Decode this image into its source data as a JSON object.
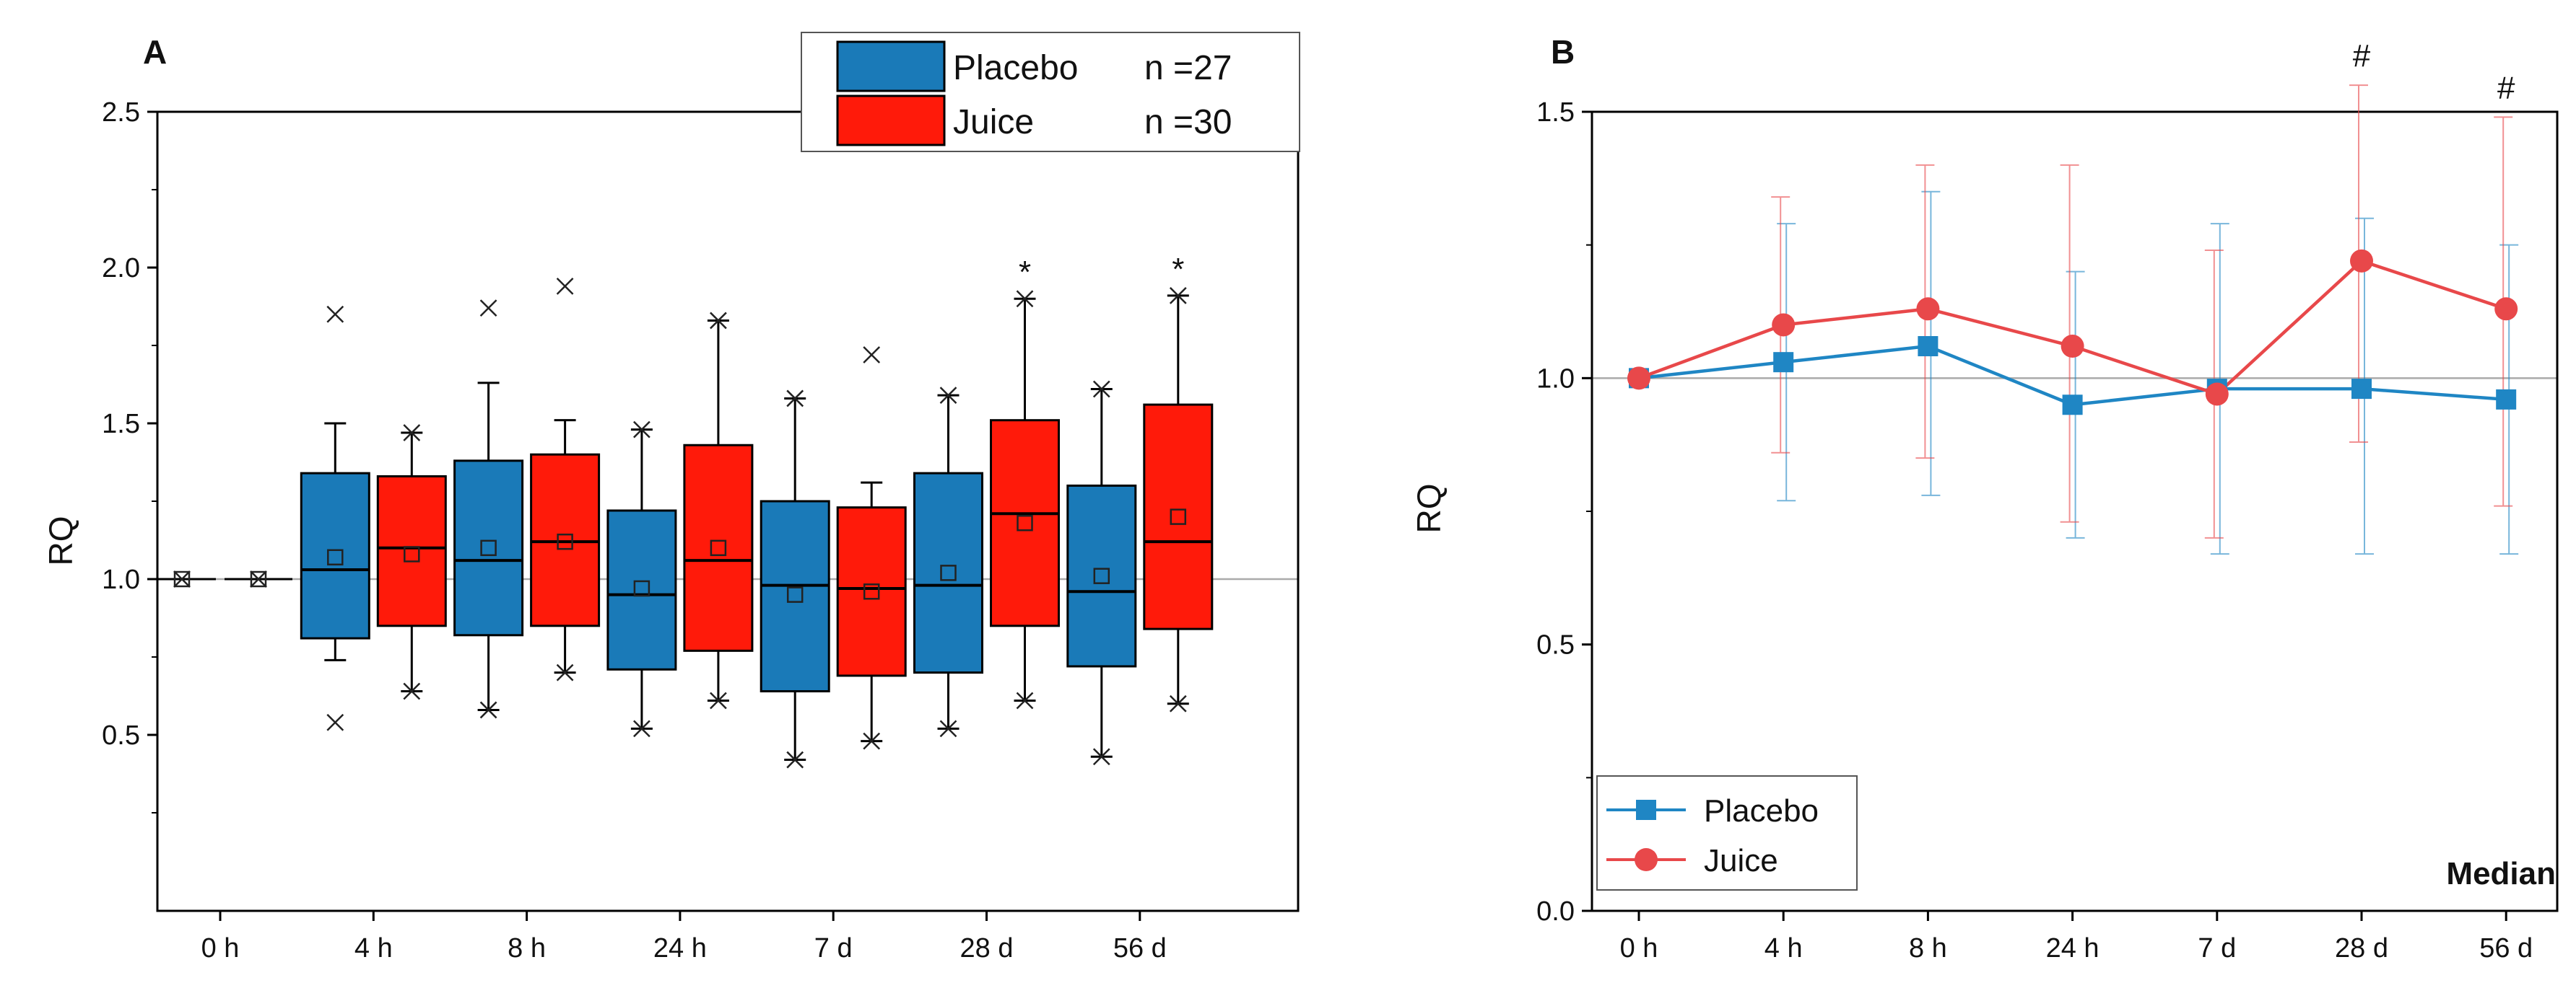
{
  "figure": {
    "panels": [
      "A",
      "B"
    ]
  },
  "chart_data": [
    {
      "panel": "A",
      "type": "box",
      "title": "",
      "xlabel": "",
      "ylabel": "RQ",
      "ylim": [
        0,
        2.5
      ],
      "yticks": [
        "0.5",
        "1.0",
        "1.5",
        "2.0",
        "2.5"
      ],
      "reference_line": 1.0,
      "categories": [
        "0 h",
        "4 h",
        "8 h",
        "24 h",
        "7 d",
        "28 d",
        "56 d"
      ],
      "legend": {
        "position": "top-right",
        "entries": [
          {
            "label": "Placebo",
            "n": "n =27",
            "color": "#1a7ab8"
          },
          {
            "label": "Juice",
            "n": "n =30",
            "color": "#ff1a0a"
          }
        ]
      },
      "series": [
        {
          "name": "Placebo",
          "color": "#1a7ab8",
          "boxes": [
            {
              "q1": 1.0,
              "median": 1.0,
              "q3": 1.0,
              "wlo": 1.0,
              "whi": 1.0,
              "mean": 1.0,
              "outliers": [
                1.0
              ]
            },
            {
              "q1": 0.81,
              "median": 1.03,
              "q3": 1.34,
              "wlo": 0.74,
              "whi": 1.5,
              "mean": 1.07,
              "outliers": [
                1.85,
                0.54
              ]
            },
            {
              "q1": 0.82,
              "median": 1.06,
              "q3": 1.38,
              "wlo": 0.58,
              "whi": 1.63,
              "mean": 1.1,
              "outliers": [
                1.87,
                0.58
              ]
            },
            {
              "q1": 0.71,
              "median": 0.95,
              "q3": 1.22,
              "wlo": 0.52,
              "whi": 1.48,
              "mean": 0.97,
              "outliers": [
                1.48,
                0.52
              ]
            },
            {
              "q1": 0.64,
              "median": 0.98,
              "q3": 1.25,
              "wlo": 0.42,
              "whi": 1.58,
              "mean": 0.95,
              "outliers": [
                1.58,
                0.42
              ]
            },
            {
              "q1": 0.7,
              "median": 0.98,
              "q3": 1.34,
              "wlo": 0.52,
              "whi": 1.59,
              "mean": 1.02,
              "outliers": [
                1.59,
                0.52
              ]
            },
            {
              "q1": 0.72,
              "median": 0.96,
              "q3": 1.3,
              "wlo": 0.43,
              "whi": 1.61,
              "mean": 1.01,
              "outliers": [
                1.61,
                0.43
              ]
            }
          ]
        },
        {
          "name": "Juice",
          "color": "#ff1a0a",
          "boxes": [
            {
              "q1": 1.0,
              "median": 1.0,
              "q3": 1.0,
              "wlo": 1.0,
              "whi": 1.0,
              "mean": 1.0,
              "outliers": [
                1.0
              ]
            },
            {
              "q1": 0.85,
              "median": 1.1,
              "q3": 1.33,
              "wlo": 0.64,
              "whi": 1.47,
              "mean": 1.08,
              "outliers": [
                1.47,
                0.64
              ]
            },
            {
              "q1": 0.85,
              "median": 1.12,
              "q3": 1.4,
              "wlo": 0.7,
              "whi": 1.51,
              "mean": 1.12,
              "outliers": [
                1.94,
                0.7
              ]
            },
            {
              "q1": 0.77,
              "median": 1.06,
              "q3": 1.43,
              "wlo": 0.61,
              "whi": 1.83,
              "mean": 1.1,
              "outliers": [
                1.83,
                0.61
              ]
            },
            {
              "q1": 0.69,
              "median": 0.97,
              "q3": 1.23,
              "wlo": 0.48,
              "whi": 1.31,
              "mean": 0.96,
              "outliers": [
                1.72,
                0.48
              ]
            },
            {
              "q1": 0.85,
              "median": 1.21,
              "q3": 1.51,
              "wlo": 0.61,
              "whi": 1.9,
              "mean": 1.18,
              "outliers": [
                1.9,
                0.61
              ]
            },
            {
              "q1": 0.84,
              "median": 1.12,
              "q3": 1.56,
              "wlo": 0.6,
              "whi": 1.91,
              "mean": 1.2,
              "outliers": [
                1.91,
                0.6
              ]
            }
          ]
        }
      ],
      "annotations": [
        {
          "category": "28 d",
          "series": "Juice",
          "text": "*"
        },
        {
          "category": "56 d",
          "series": "Juice",
          "text": "*"
        }
      ]
    },
    {
      "panel": "B",
      "type": "line",
      "title": "",
      "xlabel": "",
      "ylabel": "RQ",
      "ylim": [
        0,
        1.5
      ],
      "yticks": [
        "0.0",
        "0.5",
        "1.0",
        "1.5"
      ],
      "reference_line": 1.0,
      "categories": [
        "0 h",
        "4 h",
        "8 h",
        "24 h",
        "7 d",
        "28 d",
        "56 d"
      ],
      "statistic": "Median",
      "legend": {
        "position": "bottom-left",
        "entries": [
          {
            "label": "Placebo",
            "color": "#1f86c4",
            "marker": "square"
          },
          {
            "label": "Juice",
            "color": "#e8484a",
            "marker": "circle"
          }
        ]
      },
      "series": [
        {
          "name": "Placebo",
          "color": "#1f86c4",
          "values": [
            1.0,
            1.03,
            1.06,
            0.95,
            0.98,
            0.98,
            0.96
          ],
          "err_low": [
            1.0,
            0.77,
            0.78,
            0.7,
            0.67,
            0.67,
            0.67
          ],
          "err_high": [
            1.0,
            1.29,
            1.35,
            1.2,
            1.29,
            1.3,
            1.25
          ]
        },
        {
          "name": "Juice",
          "color": "#e8484a",
          "values": [
            1.0,
            1.1,
            1.13,
            1.06,
            0.97,
            1.22,
            1.13
          ],
          "err_low": [
            1.0,
            0.86,
            0.85,
            0.73,
            0.7,
            0.88,
            0.76
          ],
          "err_high": [
            1.0,
            1.34,
            1.4,
            1.4,
            1.24,
            1.55,
            1.49
          ]
        }
      ],
      "annotations": [
        {
          "category": "28 d",
          "text": "#"
        },
        {
          "category": "56 d",
          "text": "#"
        }
      ]
    }
  ]
}
